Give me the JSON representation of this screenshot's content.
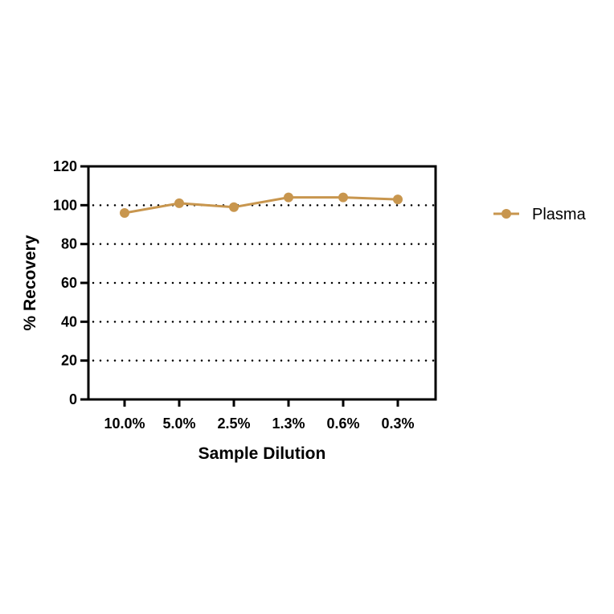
{
  "chart_data": {
    "type": "line",
    "title": "",
    "xlabel": "Sample Dilution",
    "ylabel": "% Recovery",
    "categories": [
      "10.0%",
      "5.0%",
      "2.5%",
      "1.3%",
      "0.6%",
      "0.3%"
    ],
    "series": [
      {
        "name": "Plasma",
        "values": [
          96,
          101,
          99,
          104,
          104,
          103
        ],
        "color": "#C8964E"
      }
    ],
    "ylim": [
      0,
      120
    ],
    "yticks": [
      0,
      20,
      40,
      60,
      80,
      100,
      120
    ],
    "grid": "horizontal dotted",
    "legend": "right"
  }
}
